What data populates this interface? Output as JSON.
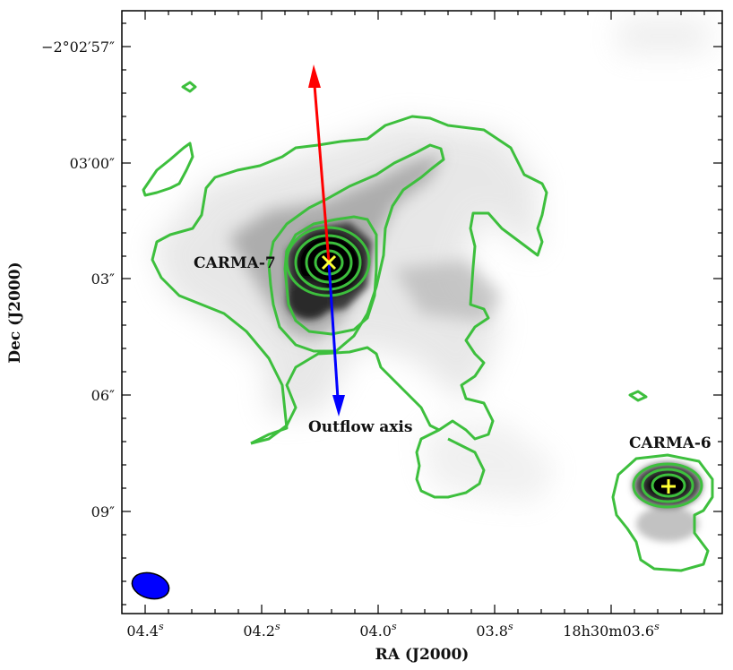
{
  "axes": {
    "xlabel": "RA (J2000)",
    "ylabel": "Dec (J2000)",
    "x_ticks": [
      "04.4",
      "04.2",
      "04.0",
      "03.8",
      "18h30m03.6"
    ],
    "y_ticks": [
      "−2°02′57″",
      "03′00″",
      "03″",
      "06″",
      "09″"
    ]
  },
  "sources": [
    {
      "name": "CARMA-7",
      "marker": "cross-x",
      "marker_color": "#ffff33"
    },
    {
      "name": "CARMA-6",
      "marker": "plus",
      "marker_color": "#ffff33"
    }
  ],
  "annotations": {
    "outflow": "Outflow axis"
  },
  "colors": {
    "contour": "#3dbf3d",
    "outflow_red": "#ff0000",
    "outflow_blue": "#0000ff",
    "beam": "#0000ff",
    "frame": "#000000"
  },
  "beam_icon": "beam-ellipse"
}
